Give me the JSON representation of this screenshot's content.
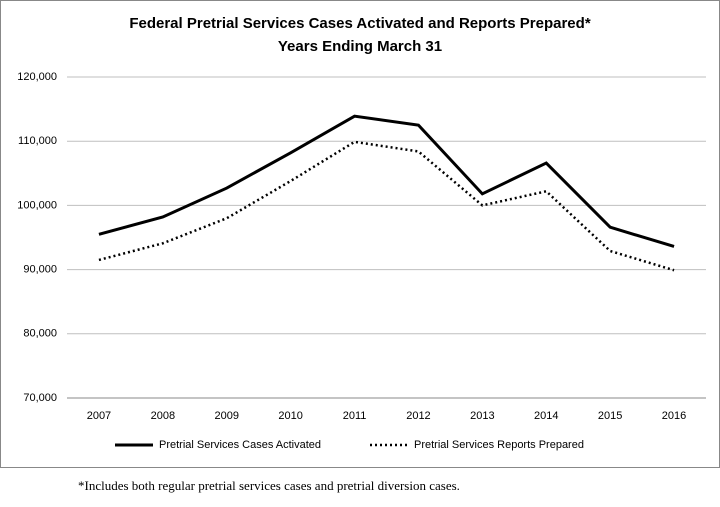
{
  "chart_data": {
    "type": "line",
    "title": "Federal Pretrial Services Cases Activated and Reports Prepared*",
    "subtitle": "Years Ending March 31",
    "categories": [
      "2007",
      "2008",
      "2009",
      "2010",
      "2011",
      "2012",
      "2013",
      "2014",
      "2015",
      "2016"
    ],
    "series": [
      {
        "name": "Pretrial Services Cases Activated",
        "color": "#000000",
        "line_style": "solid",
        "values": [
          95500,
          98200,
          102700,
          108200,
          113900,
          112500,
          101800,
          106600,
          96600,
          93600
        ]
      },
      {
        "name": "Pretrial Services Reports Prepared",
        "color": "#000000",
        "line_style": "dotted",
        "values": [
          91500,
          94100,
          98000,
          103800,
          109900,
          108400,
          100000,
          102200,
          92900,
          89900
        ]
      }
    ],
    "ylim": [
      70000,
      120000
    ],
    "yticks": [
      {
        "value": 70000,
        "label": "70,000"
      },
      {
        "value": 80000,
        "label": "80,000"
      },
      {
        "value": 90000,
        "label": "90,000"
      },
      {
        "value": 100000,
        "label": "100,000"
      },
      {
        "value": 110000,
        "label": "110,000"
      },
      {
        "value": 120000,
        "label": "120,000"
      }
    ],
    "grid": true,
    "legend": "bottom",
    "footnote": "*Includes both regular pretrial services cases and pretrial diversion cases."
  }
}
